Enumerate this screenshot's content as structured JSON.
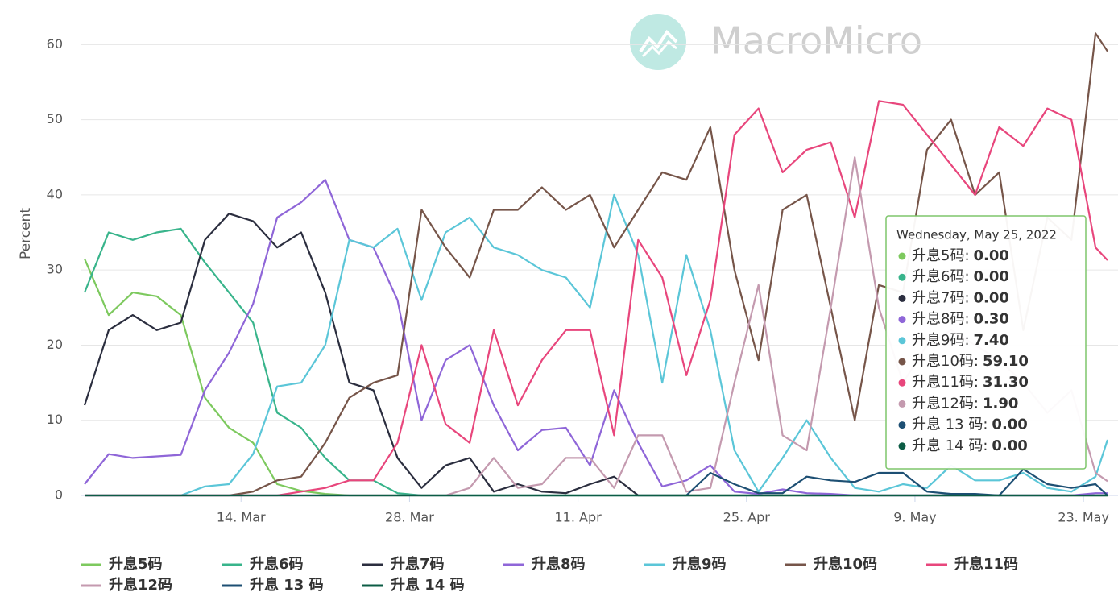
{
  "chart_data": {
    "type": "line",
    "watermark": "MacroMicro",
    "y_label": "Percent",
    "x": [
      "2022-03-01",
      "2022-03-03",
      "2022-03-05",
      "2022-03-07",
      "2022-03-09",
      "2022-03-11",
      "2022-03-13",
      "2022-03-15",
      "2022-03-17",
      "2022-03-19",
      "2022-03-21",
      "2022-03-23",
      "2022-03-25",
      "2022-03-27",
      "2022-03-29",
      "2022-03-31",
      "2022-04-02",
      "2022-04-04",
      "2022-04-06",
      "2022-04-08",
      "2022-04-10",
      "2022-04-12",
      "2022-04-14",
      "2022-04-16",
      "2022-04-18",
      "2022-04-20",
      "2022-04-22",
      "2022-04-24",
      "2022-04-26",
      "2022-04-28",
      "2022-04-30",
      "2022-05-02",
      "2022-05-04",
      "2022-05-06",
      "2022-05-08",
      "2022-05-10",
      "2022-05-12",
      "2022-05-14",
      "2022-05-16",
      "2022-05-18",
      "2022-05-20",
      "2022-05-22",
      "2022-05-24",
      "2022-05-25"
    ],
    "xlim": [
      "2022-03-01",
      "2022-05-25"
    ],
    "xticks": [
      {
        "value": "2022-03-14",
        "label": "14. Mar"
      },
      {
        "value": "2022-03-28",
        "label": "28. Mar"
      },
      {
        "value": "2022-04-11",
        "label": "11. Apr"
      },
      {
        "value": "2022-04-25",
        "label": "25. Apr"
      },
      {
        "value": "2022-05-09",
        "label": "9. May"
      },
      {
        "value": "2022-05-23",
        "label": "23. May"
      }
    ],
    "ylim": [
      0,
      64
    ],
    "yticks": [
      0,
      10,
      20,
      30,
      40,
      50,
      60
    ],
    "grid": true,
    "legend": "bottom",
    "series": [
      {
        "name": "升息5码",
        "color": "#7dc95e",
        "values": [
          31.5,
          24,
          27,
          26.5,
          24,
          13,
          9,
          7,
          1.5,
          0.6,
          0.2,
          0,
          0,
          0,
          0,
          0,
          0,
          0,
          0,
          0,
          0,
          0,
          0,
          0,
          0,
          0,
          0,
          0,
          0,
          0,
          0,
          0,
          0,
          0,
          0,
          0,
          0,
          0,
          0,
          0,
          0,
          0,
          0,
          0
        ]
      },
      {
        "name": "升息6码",
        "color": "#38b48b",
        "values": [
          27,
          35,
          34,
          35,
          35.5,
          31,
          27,
          23,
          11,
          9,
          5,
          2,
          2,
          0.3,
          0,
          0,
          0,
          0,
          0,
          0,
          0,
          0,
          0,
          0,
          0,
          0,
          0,
          0,
          0,
          0,
          0,
          0,
          0,
          0,
          0,
          0,
          0,
          0,
          0,
          0,
          0,
          0,
          0,
          0
        ]
      },
      {
        "name": "升息7码",
        "color": "#2b2e3f",
        "values": [
          12,
          22,
          24,
          22,
          23,
          34,
          37.5,
          36.5,
          33,
          35,
          27,
          15,
          14,
          5,
          1,
          4,
          5,
          0.5,
          1.5,
          0.5,
          0.3,
          1.5,
          2.5,
          0,
          0,
          0,
          0,
          0,
          0,
          0,
          0,
          0,
          0,
          0,
          0,
          0,
          0,
          0,
          0,
          0,
          0,
          0,
          0,
          0
        ]
      },
      {
        "name": "升息8码",
        "color": "#8f66d8",
        "values": [
          1.5,
          5.5,
          5,
          5.2,
          5.4,
          14,
          19,
          25.5,
          37,
          39,
          42,
          34,
          33,
          26,
          10,
          18,
          20,
          12,
          6,
          8.7,
          9,
          4,
          14,
          7,
          1.2,
          2,
          4,
          0.5,
          0.2,
          0.8,
          0.3,
          0.2,
          0,
          0,
          0,
          0,
          0,
          0,
          0,
          0,
          0,
          0,
          0.3,
          0.3
        ]
      },
      {
        "name": "升息9码",
        "color": "#5bc6d8",
        "values": [
          0,
          0,
          0,
          0,
          0,
          1.2,
          1.5,
          5.5,
          14.5,
          15,
          20,
          34,
          33,
          35.5,
          26,
          35,
          37,
          33,
          32,
          30,
          29,
          25,
          40,
          32,
          15,
          32,
          22,
          6,
          0.5,
          5,
          10,
          5,
          1,
          0.5,
          1.5,
          1,
          4,
          2,
          2,
          3,
          1,
          0.5,
          2.5,
          7.4
        ]
      },
      {
        "name": "升息10码",
        "color": "#765549",
        "values": [
          0,
          0,
          0,
          0,
          0,
          0,
          0,
          0.5,
          2,
          2.5,
          7,
          13,
          15,
          16,
          38,
          33,
          29,
          38,
          38,
          41,
          38,
          40,
          33,
          38,
          43,
          42,
          49,
          30,
          18,
          38,
          40,
          25,
          10,
          28,
          27,
          46,
          50,
          40,
          43,
          22,
          37,
          34,
          61.5,
          59.1
        ]
      },
      {
        "name": "升息11码",
        "color": "#e8467c",
        "values": [
          0,
          0,
          0,
          0,
          0,
          0,
          0,
          0,
          0,
          0.5,
          1,
          2,
          2,
          7,
          20,
          9.5,
          7,
          22,
          12,
          18,
          22,
          22,
          8,
          34,
          29,
          16,
          26,
          48,
          51.5,
          43,
          46,
          47,
          37,
          52.5,
          52,
          48,
          44,
          40,
          49,
          46.5,
          51.5,
          50,
          33,
          31.3
        ]
      },
      {
        "name": "升息12码",
        "color": "#c49aaf",
        "values": [
          0,
          0,
          0,
          0,
          0,
          0,
          0,
          0,
          0,
          0,
          0,
          0,
          0,
          0,
          0,
          0,
          1,
          5,
          1,
          1.5,
          5,
          5,
          1,
          8,
          8,
          0.5,
          1,
          15,
          28,
          8,
          6,
          25,
          45,
          25,
          15,
          20,
          22,
          20,
          18,
          15,
          11,
          14,
          3,
          1.9
        ]
      },
      {
        "name": "升息 13 码",
        "color": "#1d4f73",
        "values": [
          0,
          0,
          0,
          0,
          0,
          0,
          0,
          0,
          0,
          0,
          0,
          0,
          0,
          0,
          0,
          0,
          0,
          0,
          0,
          0,
          0,
          0,
          0,
          0,
          0,
          0,
          3,
          1.5,
          0.3,
          0.3,
          2.5,
          2,
          1.8,
          3,
          3,
          0.5,
          0.2,
          0.2,
          0,
          3.5,
          1.5,
          1,
          1.5,
          0
        ]
      },
      {
        "name": "升息 14 码",
        "color": "#0c5c45",
        "values": [
          0,
          0,
          0,
          0,
          0,
          0,
          0,
          0,
          0,
          0,
          0,
          0,
          0,
          0,
          0,
          0,
          0,
          0,
          0,
          0,
          0,
          0,
          0,
          0,
          0,
          0,
          0,
          0,
          0,
          0,
          0,
          0,
          0,
          0,
          0,
          0,
          0,
          0,
          0,
          0,
          0,
          0,
          0,
          0
        ]
      }
    ],
    "tooltip": {
      "title": "Wednesday, May 25, 2022",
      "items": [
        {
          "label": "升息5码:",
          "value": "0.00"
        },
        {
          "label": "升息6码:",
          "value": "0.00"
        },
        {
          "label": "升息7码:",
          "value": "0.00"
        },
        {
          "label": "升息8码:",
          "value": "0.30"
        },
        {
          "label": "升息9码:",
          "value": "7.40"
        },
        {
          "label": "升息10码:",
          "value": "59.10"
        },
        {
          "label": "升息11码:",
          "value": "31.30"
        },
        {
          "label": "升息12码:",
          "value": "1.90"
        },
        {
          "label": "升息 13 码:",
          "value": "0.00"
        },
        {
          "label": "升息 14 码:",
          "value": "0.00"
        }
      ]
    }
  }
}
